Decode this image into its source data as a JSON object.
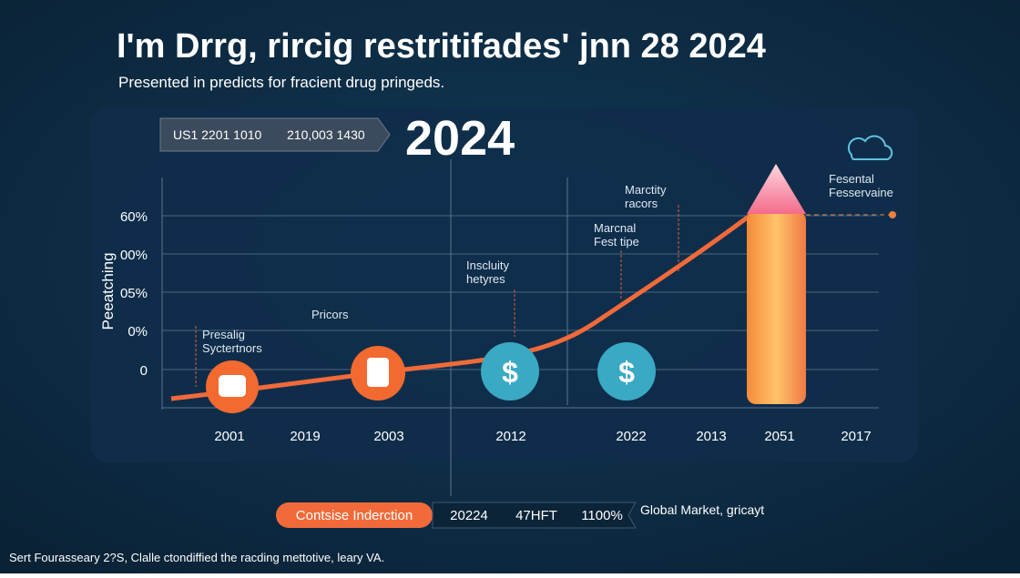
{
  "header": {
    "title": "I'm Drrg, rircig  restritifades' jnn  28 2024",
    "subtitle": "Presented in predicts for fracient drug pringeds."
  },
  "panel": {
    "badge": [
      "US1 2201 1010",
      "210,003 1430"
    ],
    "year": "2024",
    "axis_title": "Peeatching",
    "y_labels": [
      "60%",
      "00%",
      "05%",
      "0%",
      "0"
    ],
    "x_labels": [
      "2001",
      "2019",
      "2003",
      "2012",
      "2022",
      "2013",
      "2051",
      "2017"
    ],
    "annotations": [
      [
        "Presalig",
        "Syctertnors"
      ],
      [
        "Pricors"
      ],
      [
        "Inscluity",
        "hetyres"
      ],
      [
        "Marctity",
        "racors"
      ],
      [
        "Marcnal",
        "Fest tipe"
      ],
      [
        "Fesental",
        "Fesservaine"
      ]
    ],
    "icons": [
      "$",
      "$"
    ]
  },
  "footer_bar": {
    "button": "Contsise Inderction",
    "segments": [
      "20224",
      "47HFT",
      "1100%"
    ],
    "note": "Global Market, gricayt"
  },
  "caption": "Sert Fourasseary 2?S, Clalle ctondiffied the racding mettotive, leary VA."
}
